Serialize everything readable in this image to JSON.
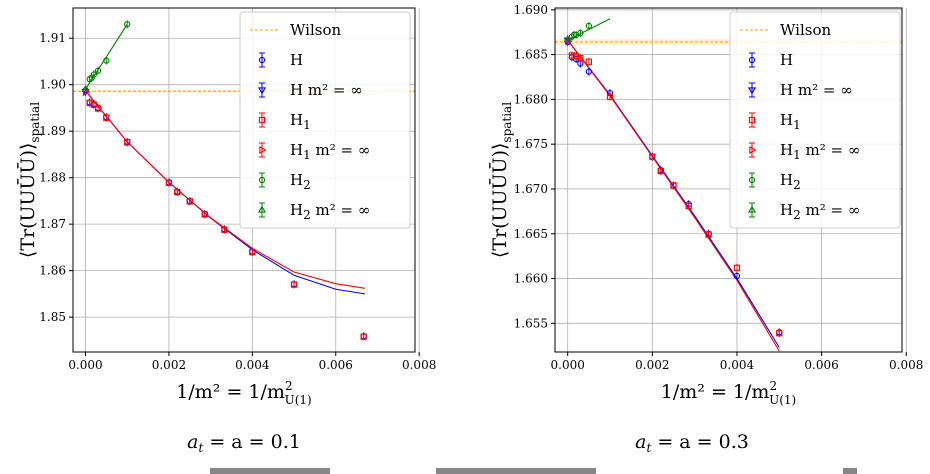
{
  "chart_data": [
    {
      "type": "scatter",
      "caption": "a_t = a = 0.1",
      "xlabel": "1/m^2 = 1/m^2_U(1)",
      "ylabel": "<Tr(UUŪŪ)>_spatial",
      "xlim": [
        -0.0003,
        0.0079
      ],
      "ylim": [
        1.8425,
        1.9165
      ],
      "xticks": [
        0.0,
        0.002,
        0.004,
        0.006,
        0.008
      ],
      "xtick_labels": [
        "0.000",
        "0.002",
        "0.004",
        "0.006",
        "0.008"
      ],
      "yticks": [
        1.85,
        1.86,
        1.87,
        1.88,
        1.89,
        1.9,
        1.91
      ],
      "ytick_labels": [
        "1.85",
        "1.86",
        "1.87",
        "1.88",
        "1.89",
        "1.90",
        "1.91"
      ],
      "grid": true,
      "legend_position": "top-right",
      "wilson": {
        "value": 1.8986,
        "band": 0.0003
      },
      "series": [
        {
          "name": "H",
          "color": "#0000ff",
          "marker": "circle",
          "x": [
            0.0,
            0.0001,
            0.0002,
            0.0003,
            0.0005,
            0.001,
            0.002,
            0.0022,
            0.0025,
            0.00286,
            0.00333,
            0.004,
            0.005,
            0.00667
          ],
          "y": [
            1.8988,
            1.8962,
            1.8958,
            1.895,
            1.893,
            1.8877,
            1.879,
            1.877,
            1.875,
            1.8722,
            1.8689,
            1.8641,
            1.8571,
            1.8459
          ]
        },
        {
          "name": "H m^2 = ∞",
          "color": "#0000ff",
          "marker": "triangle-down",
          "x": [
            0.0
          ],
          "y": [
            1.8985
          ]
        },
        {
          "name": "H_1",
          "color": "#ff0000",
          "marker": "square",
          "x": [
            0.0001,
            0.0002,
            0.0003,
            0.0005,
            0.001,
            0.002,
            0.0022,
            0.0025,
            0.00286,
            0.00333,
            0.004,
            0.005,
            0.00667
          ],
          "y": [
            1.8961,
            1.8957,
            1.8949,
            1.8929,
            1.8876,
            1.8789,
            1.8769,
            1.8749,
            1.8721,
            1.8688,
            1.864,
            1.857,
            1.8458
          ]
        },
        {
          "name": "H_1 m^2 = ∞",
          "color": "#ff0000",
          "marker": "triangle-right",
          "x": [
            0.0
          ],
          "y": [
            1.8984
          ]
        },
        {
          "name": "H_2",
          "color": "#008000",
          "marker": "circle",
          "x": [
            0.0001,
            0.00015,
            0.0002,
            0.0003,
            0.0005,
            0.001
          ],
          "y": [
            1.9012,
            1.9015,
            1.9022,
            1.903,
            1.9052,
            1.913
          ]
        },
        {
          "name": "H_2 m^2 = ∞",
          "color": "#008000",
          "marker": "triangle-up",
          "x": [
            0.0
          ],
          "y": [
            1.899
          ]
        }
      ],
      "fits": [
        {
          "color": "#0000ff",
          "x": [
            0.0,
            0.001,
            0.002,
            0.003,
            0.004,
            0.005,
            0.006,
            0.0067
          ],
          "y": [
            1.8987,
            1.8877,
            1.879,
            1.8713,
            1.8645,
            1.859,
            1.856,
            1.855
          ]
        },
        {
          "color": "#ff0000",
          "x": [
            0.0,
            0.001,
            0.002,
            0.003,
            0.004,
            0.005,
            0.006,
            0.0067
          ],
          "y": [
            1.8987,
            1.8877,
            1.879,
            1.8714,
            1.8648,
            1.8597,
            1.8572,
            1.8562
          ]
        },
        {
          "color": "#008000",
          "x": [
            0.0,
            0.001
          ],
          "y": [
            1.899,
            1.913
          ]
        }
      ]
    },
    {
      "type": "scatter",
      "caption": "a_t = a = 0.3",
      "xlabel": "1/m^2 = 1/m^2_U(1)",
      "ylabel": "<Tr(UUŪŪ)>_spatial",
      "xlim": [
        -0.0003,
        0.0079
      ],
      "ylim": [
        1.6518,
        1.6902
      ],
      "xticks": [
        0.0,
        0.002,
        0.004,
        0.006,
        0.008
      ],
      "xtick_labels": [
        "0.000",
        "0.002",
        "0.004",
        "0.006",
        "0.008"
      ],
      "yticks": [
        1.655,
        1.66,
        1.665,
        1.67,
        1.675,
        1.68,
        1.685,
        1.69
      ],
      "ytick_labels": [
        "1.655",
        "1.660",
        "1.665",
        "1.670",
        "1.675",
        "1.680",
        "1.685",
        "1.690"
      ],
      "grid": true,
      "legend_position": "top-right",
      "wilson": {
        "value": 1.6864,
        "band": 0.0003
      },
      "series": [
        {
          "name": "H",
          "color": "#0000ff",
          "marker": "circle",
          "x": [
            0.0,
            0.0001,
            0.0002,
            0.0003,
            0.0005,
            0.001,
            0.002,
            0.0022,
            0.0025,
            0.00286,
            0.00333,
            0.004,
            0.005
          ],
          "y": [
            1.6864,
            1.6847,
            1.6845,
            1.684,
            1.6831,
            1.6807,
            1.6736,
            1.6721,
            1.6704,
            1.6683,
            1.665,
            1.6603,
            1.654
          ]
        },
        {
          "name": "H m^2 = ∞",
          "color": "#0000ff",
          "marker": "triangle-down",
          "x": [
            0.0
          ],
          "y": [
            1.6866
          ]
        },
        {
          "name": "H_1",
          "color": "#ff0000",
          "marker": "square",
          "x": [
            0.0001,
            0.0002,
            0.0003,
            0.0005,
            0.001,
            0.002,
            0.0022,
            0.0025,
            0.00286,
            0.00333,
            0.004,
            0.005
          ],
          "y": [
            1.6849,
            1.6848,
            1.6846,
            1.6842,
            1.6803,
            1.6736,
            1.672,
            1.6704,
            1.6681,
            1.6649,
            1.6612,
            1.6539
          ]
        },
        {
          "name": "H_1 m^2 = ∞",
          "color": "#ff0000",
          "marker": "triangle-right",
          "x": [
            0.0
          ],
          "y": [
            1.6865
          ]
        },
        {
          "name": "H_2",
          "color": "#008000",
          "marker": "circle",
          "x": [
            0.0001,
            0.00015,
            0.0002,
            0.0003,
            0.0005
          ],
          "y": [
            1.687,
            1.6872,
            1.6872,
            1.6874,
            1.6882
          ]
        },
        {
          "name": "H_2 m^2 = ∞",
          "color": "#008000",
          "marker": "triangle-up",
          "x": [
            0.0
          ],
          "y": [
            1.6867
          ]
        }
      ],
      "fits": [
        {
          "color": "#0000ff",
          "x": [
            0.0,
            0.001,
            0.002,
            0.003,
            0.004,
            0.005
          ],
          "y": [
            1.6866,
            1.6805,
            1.6737,
            1.667,
            1.66,
            1.6523
          ]
        },
        {
          "color": "#ff0000",
          "x": [
            0.0,
            0.001,
            0.002,
            0.003,
            0.004,
            0.005
          ],
          "y": [
            1.6866,
            1.6804,
            1.6736,
            1.6668,
            1.6598,
            1.6519
          ]
        },
        {
          "color": "#008000",
          "x": [
            0.0,
            0.001
          ],
          "y": [
            1.6866,
            1.689
          ]
        }
      ]
    }
  ],
  "legend": {
    "entries": [
      {
        "key": "wilson",
        "label": "Wilson"
      },
      {
        "key": "H",
        "label": "H",
        "extra": ""
      },
      {
        "key": "Hinf",
        "label": "H",
        "extra": " m² = ∞"
      },
      {
        "key": "H1",
        "label": "H",
        "sub": "1",
        "extra": ""
      },
      {
        "key": "H1inf",
        "label": "H",
        "sub": "1",
        "extra": " m² = ∞"
      },
      {
        "key": "H2",
        "label": "H",
        "sub": "2",
        "extra": ""
      },
      {
        "key": "H2inf",
        "label": "H",
        "sub": "2",
        "extra": " m² = ∞"
      }
    ]
  },
  "labels": {
    "xlabel_main": "1/m² = 1/m",
    "xlabel_sup": "2",
    "xlabel_sub": "U(1)",
    "ylabel_main": "⟨Tr(UUŪŪ)⟩",
    "ylabel_sub": "spatial",
    "caption_left_main": "a",
    "caption_left_sub": "t",
    "caption_left_rest": " = a = 0.1",
    "caption_right_main": "a",
    "caption_right_sub": "t",
    "caption_right_rest": " = a = 0.3"
  },
  "colors": {
    "wilson": "#ffa500",
    "H": "#0000ff",
    "H1": "#ff0000",
    "H2": "#008000",
    "grid": "#b0b0b0"
  }
}
